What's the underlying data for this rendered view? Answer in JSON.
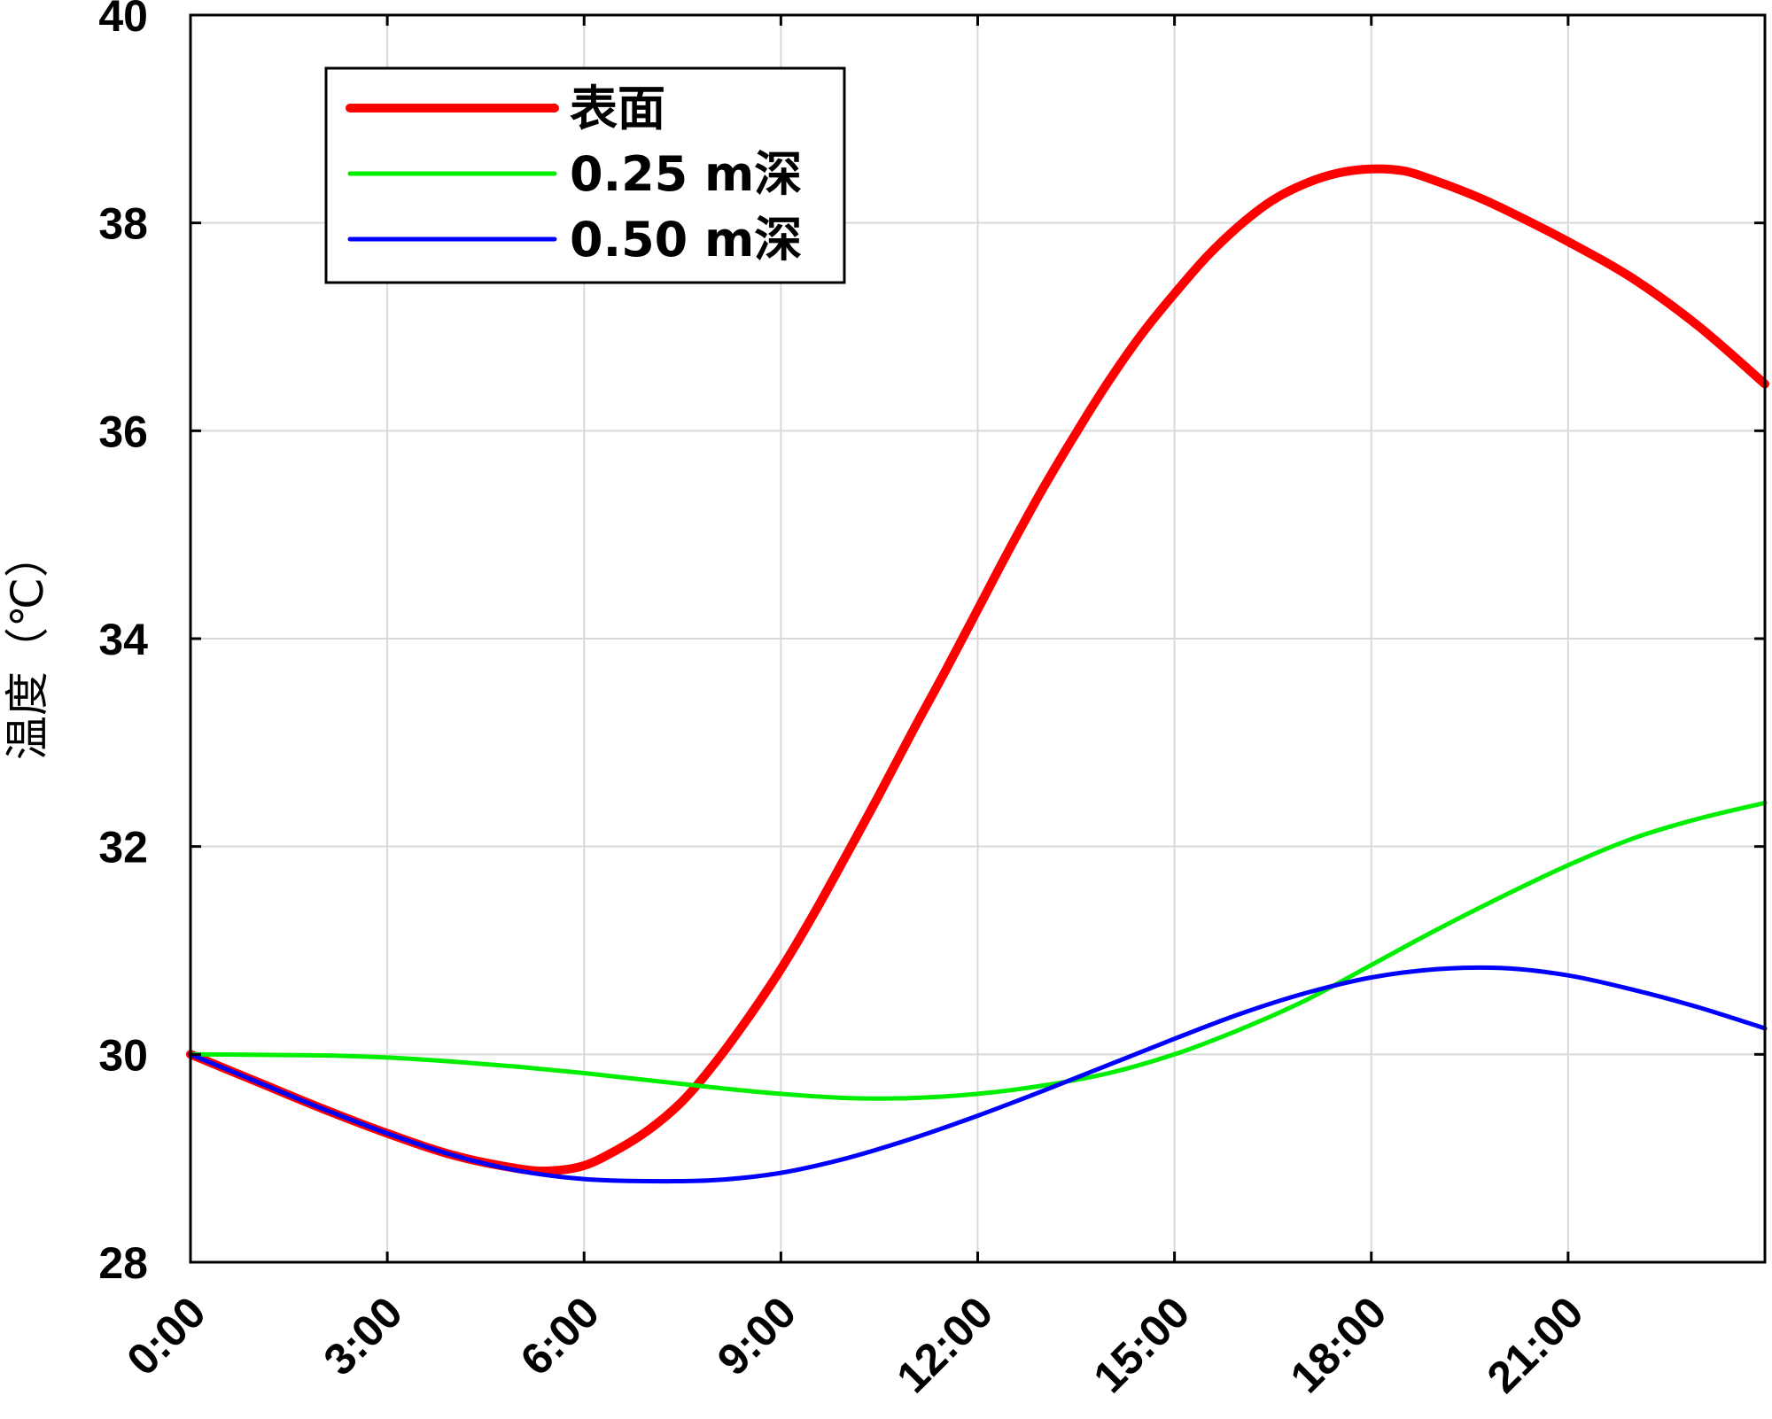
{
  "chart_data": {
    "type": "line",
    "ylabel": "温度（℃）",
    "xlabel": "",
    "ylim": [
      28,
      40
    ],
    "xlim": [
      0,
      24
    ],
    "yticks": [
      28,
      30,
      32,
      34,
      36,
      38,
      40
    ],
    "xticks": [
      0,
      3,
      6,
      9,
      12,
      15,
      18,
      21
    ],
    "xtick_labels": [
      "0:00",
      "3:00",
      "6:00",
      "9:00",
      "12:00",
      "15:00",
      "18:00",
      "21:00"
    ],
    "grid": true,
    "legend_position": "top-left",
    "series": [
      {
        "name": "表面",
        "color": "#ff0000",
        "x": [
          0,
          1,
          2,
          3,
          4,
          5,
          5.5,
          6,
          6.5,
          7,
          7.5,
          8,
          8.5,
          9,
          9.5,
          10,
          10.5,
          11,
          11.5,
          12,
          12.5,
          13,
          13.5,
          14,
          14.5,
          15,
          15.5,
          16,
          16.5,
          17,
          17.5,
          18,
          18.5,
          19,
          19.5,
          20,
          21,
          22,
          23,
          24
        ],
        "y": [
          30.0,
          29.74,
          29.48,
          29.24,
          29.03,
          28.9,
          28.88,
          28.93,
          29.08,
          29.28,
          29.55,
          29.92,
          30.35,
          30.82,
          31.35,
          31.92,
          32.5,
          33.1,
          33.68,
          34.28,
          34.88,
          35.45,
          35.98,
          36.48,
          36.93,
          37.32,
          37.68,
          37.98,
          38.22,
          38.38,
          38.48,
          38.52,
          38.5,
          38.4,
          38.28,
          38.14,
          37.82,
          37.46,
          37.0,
          36.45
        ]
      },
      {
        "name": "0.25 m深",
        "color": "#00ee00",
        "x": [
          0,
          2,
          3,
          4,
          5,
          6,
          7,
          8,
          9,
          10,
          11,
          12,
          13,
          14,
          15,
          16,
          17,
          18,
          19,
          20,
          21,
          22,
          23,
          24
        ],
        "y": [
          30.0,
          29.99,
          29.97,
          29.93,
          29.88,
          29.82,
          29.75,
          29.68,
          29.62,
          29.58,
          29.58,
          29.62,
          29.7,
          29.82,
          30.0,
          30.24,
          30.52,
          30.86,
          31.2,
          31.52,
          31.82,
          32.08,
          32.27,
          32.42
        ]
      },
      {
        "name": "0.50 m深",
        "color": "#0000ff",
        "x": [
          0,
          1,
          2,
          3,
          4,
          5,
          6,
          7,
          8,
          9,
          10,
          11,
          12,
          13,
          14,
          15,
          16,
          17,
          18,
          19,
          20,
          21,
          22,
          23,
          24
        ],
        "y": [
          30.0,
          29.74,
          29.48,
          29.24,
          29.03,
          28.88,
          28.8,
          28.78,
          28.79,
          28.86,
          29.0,
          29.19,
          29.41,
          29.65,
          29.9,
          30.15,
          30.39,
          30.59,
          30.74,
          30.82,
          30.83,
          30.76,
          30.62,
          30.45,
          30.25
        ]
      }
    ]
  }
}
